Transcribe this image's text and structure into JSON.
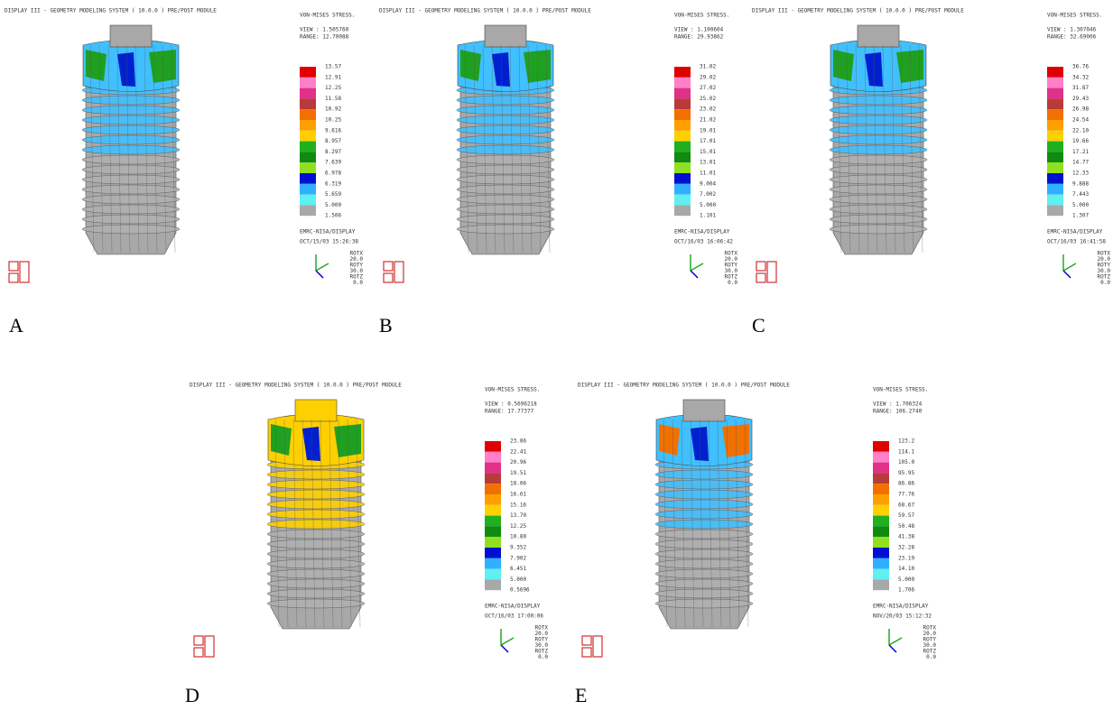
{
  "panels": [
    {
      "label": "A",
      "header": "DISPLAY III - GEOMETRY MODELING SYSTEM ( 10.0.0 )   PRE/POST MODULE",
      "title": "VON-MISES STRESS.",
      "view": "VIEW : 1.505760",
      "range": "RANGE: 12.70088",
      "legend": [
        "13.57",
        "12.91",
        "12.25",
        "11.58",
        "10.92",
        "10.25",
        "9.616",
        "8.957",
        "8.297",
        "7.639",
        "6.978",
        "6.319",
        "5.659",
        "5.000",
        "1.506"
      ],
      "footer": "EMRC-NISA/DISPLAY",
      "date": "OCT/15/03 15:26:38",
      "rotation": [
        "ROTX",
        "20.0",
        "ROTY",
        "30.0",
        "ROTZ",
        "0.0"
      ]
    },
    {
      "label": "B",
      "header": "DISPLAY III - GEOMETRY MODELING SYSTEM ( 10.0.0 )   PRE/POST MODULE",
      "title": "VON-MISES STRESS.",
      "view": "VIEW : 1.100604",
      "range": "RANGE: 29.93862",
      "legend": [
        "31.02",
        "29.02",
        "27.02",
        "25.02",
        "23.02",
        "21.02",
        "19.01",
        "17.01",
        "15.01",
        "13.01",
        "11.01",
        "9.004",
        "7.002",
        "5.000",
        "1.101"
      ],
      "footer": "EMRC-NISA/DISPLAY",
      "date": "OCT/16/03 16:06:42",
      "rotation": [
        "ROTX",
        "20.0",
        "ROTY",
        "30.0",
        "ROTZ",
        "0.0"
      ]
    },
    {
      "label": "C",
      "header": "DISPLAY III - GEOMETRY MODELING SYSTEM ( 10.0.0 )   PRE/POST MODULE",
      "title": "VON-MISES STRESS.",
      "view": "VIEW : 1.307046",
      "range": "RANGE: 32.69006",
      "legend": [
        "36.76",
        "34.32",
        "31.87",
        "29.43",
        "26.98",
        "24.54",
        "22.10",
        "19.66",
        "17.21",
        "14.77",
        "12.33",
        "9.888",
        "7.443",
        "5.000",
        "1.307"
      ],
      "footer": "EMRC-NISA/DISPLAY",
      "date": "OCT/16/03 16:41:58",
      "rotation": [
        "ROTX",
        "20.0",
        "ROTY",
        "30.0",
        "ROTZ",
        "0.0"
      ]
    },
    {
      "label": "D",
      "header": "DISPLAY III - GEOMETRY MODELING SYSTEM ( 10.0.0 )   PRE/POST MODULE",
      "title": "VON-MISES STRESS.",
      "view": "VIEW : 0.5696218",
      "range": "RANGE: 17.77377",
      "legend": [
        "23.86",
        "22.41",
        "20.96",
        "19.51",
        "18.06",
        "16.61",
        "15.16",
        "13.70",
        "12.25",
        "10.80",
        "9.352",
        "7.902",
        "6.451",
        "5.000",
        "0.5696"
      ],
      "footer": "EMRC-NISA/DISPLAY",
      "date": "OCT/16/03 17:00:06",
      "rotation": [
        "ROTX",
        "20.0",
        "ROTY",
        "30.0",
        "ROTZ",
        "0.0"
      ]
    },
    {
      "label": "E",
      "header": "DISPLAY III - GEOMETRY MODELING SYSTEM ( 10.0.0 )   PRE/POST MODULE",
      "title": "VON-MISES STRESS.",
      "view": "VIEW : 1.706324",
      "range": "RANGE: 106.2740",
      "legend": [
        "123.2",
        "114.1",
        "105.0",
        "95.95",
        "86.86",
        "77.76",
        "68.67",
        "59.57",
        "50.48",
        "41.38",
        "32.28",
        "23.19",
        "14.10",
        "5.000",
        "1.706"
      ],
      "footer": "EMRC-NISA/DISPLAY",
      "date": "NOV/20/03 15:12:32",
      "rotation": [
        "ROTX",
        "20.0",
        "ROTY",
        "30.0",
        "ROTZ",
        "0.0"
      ]
    }
  ]
}
